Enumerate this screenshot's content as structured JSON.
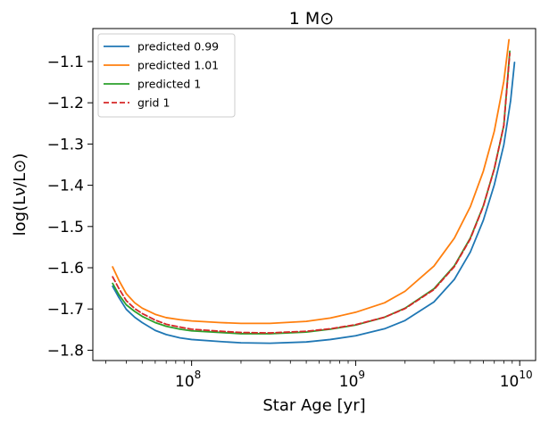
{
  "chart_data": {
    "type": "line",
    "title": "1 M⊙",
    "xlabel": "Star Age [yr]",
    "ylabel": "log(Lν/L⊙)",
    "xscale": "log",
    "xlim": [
      25000000,
      12500000000
    ],
    "ylim": [
      -1.825,
      -1.02
    ],
    "x_ticks": [
      {
        "value": 100000000,
        "base": "10",
        "exp": "8"
      },
      {
        "value": 1000000000,
        "base": "10",
        "exp": "9"
      },
      {
        "value": 10000000000,
        "base": "10",
        "exp": "10"
      }
    ],
    "y_ticks": [
      {
        "value": -1.8,
        "label": "−1.8"
      },
      {
        "value": -1.7,
        "label": "−1.7"
      },
      {
        "value": -1.6,
        "label": "−1.6"
      },
      {
        "value": -1.5,
        "label": "−1.5"
      },
      {
        "value": -1.4,
        "label": "−1.4"
      },
      {
        "value": -1.3,
        "label": "−1.3"
      },
      {
        "value": -1.2,
        "label": "−1.2"
      },
      {
        "value": -1.1,
        "label": "−1.1"
      }
    ],
    "legend_position": "top-left",
    "grid": false,
    "series": [
      {
        "name": "predicted 0.99",
        "color": "#1f77b4",
        "dash": "solid",
        "x": [
          33000000,
          36000000,
          40000000,
          45000000,
          50000000,
          60000000,
          70000000,
          85000000,
          100000000,
          150000000,
          200000000,
          300000000,
          500000000,
          700000000,
          1000000000,
          1500000000,
          2000000000,
          3000000000,
          4000000000,
          5000000000,
          6000000000,
          7000000000,
          8000000000,
          8800000000,
          9300000000
        ],
        "y": [
          -1.645,
          -1.672,
          -1.701,
          -1.72,
          -1.733,
          -1.752,
          -1.762,
          -1.77,
          -1.774,
          -1.779,
          -1.782,
          -1.783,
          -1.78,
          -1.774,
          -1.765,
          -1.748,
          -1.728,
          -1.683,
          -1.628,
          -1.562,
          -1.485,
          -1.399,
          -1.302,
          -1.195,
          -1.102
        ]
      },
      {
        "name": "predicted 1.01",
        "color": "#ff7f0e",
        "dash": "solid",
        "x": [
          33000000,
          36000000,
          40000000,
          45000000,
          50000000,
          60000000,
          70000000,
          85000000,
          100000000,
          150000000,
          200000000,
          300000000,
          500000000,
          700000000,
          1000000000,
          1500000000,
          2000000000,
          3000000000,
          4000000000,
          5000000000,
          6000000000,
          7000000000,
          8000000000,
          8600000000
        ],
        "y": [
          -1.598,
          -1.63,
          -1.663,
          -1.685,
          -1.698,
          -1.713,
          -1.721,
          -1.726,
          -1.729,
          -1.733,
          -1.735,
          -1.735,
          -1.73,
          -1.722,
          -1.708,
          -1.685,
          -1.657,
          -1.596,
          -1.528,
          -1.452,
          -1.366,
          -1.269,
          -1.148,
          -1.047
        ]
      },
      {
        "name": "predicted 1",
        "color": "#2ca02c",
        "dash": "solid",
        "x": [
          33000000,
          36000000,
          40000000,
          45000000,
          50000000,
          60000000,
          70000000,
          85000000,
          100000000,
          150000000,
          200000000,
          300000000,
          500000000,
          700000000,
          1000000000,
          1500000000,
          2000000000,
          3000000000,
          4000000000,
          5000000000,
          6000000000,
          7000000000,
          8000000000,
          8700000000
        ],
        "y": [
          -1.638,
          -1.665,
          -1.69,
          -1.706,
          -1.718,
          -1.733,
          -1.742,
          -1.749,
          -1.753,
          -1.757,
          -1.76,
          -1.76,
          -1.756,
          -1.749,
          -1.739,
          -1.72,
          -1.698,
          -1.651,
          -1.595,
          -1.528,
          -1.45,
          -1.36,
          -1.255,
          -1.075
        ]
      },
      {
        "name": "grid 1",
        "color": "#d62728",
        "dash": "dashed",
        "x": [
          33000000,
          36000000,
          40000000,
          45000000,
          50000000,
          60000000,
          70000000,
          85000000,
          100000000,
          150000000,
          200000000,
          300000000,
          500000000,
          700000000,
          1000000000,
          1500000000,
          2000000000,
          3000000000,
          4000000000,
          5000000000,
          6000000000,
          7000000000,
          8000000000,
          8700000000
        ],
        "y": [
          -1.622,
          -1.65,
          -1.68,
          -1.699,
          -1.711,
          -1.727,
          -1.737,
          -1.744,
          -1.749,
          -1.754,
          -1.757,
          -1.758,
          -1.754,
          -1.748,
          -1.738,
          -1.72,
          -1.699,
          -1.653,
          -1.597,
          -1.53,
          -1.451,
          -1.36,
          -1.255,
          -1.08
        ]
      }
    ]
  }
}
